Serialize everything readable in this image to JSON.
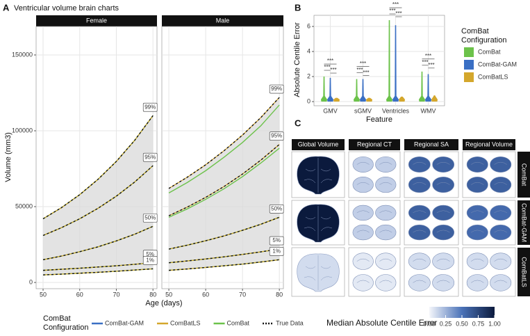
{
  "chart_data": [
    {
      "type": "line",
      "panel": "A",
      "title": "Ventricular volume brain charts",
      "xlabel": "Age (days)",
      "ylabel": "Volume (mm3)",
      "xlim": [
        48.1,
        81.1
      ],
      "ylim": [
        -4100,
        168800
      ],
      "xticks": [
        50,
        60,
        70,
        80
      ],
      "yticks": [
        0,
        50000,
        100000,
        150000
      ],
      "grid": true,
      "x": [
        50,
        55,
        60,
        65,
        70,
        75,
        80
      ],
      "legend_title": [
        "ComBat",
        "Configuration"
      ],
      "series": [
        {
          "name": "ComBat-GAM",
          "color": "#3a6fc4"
        },
        {
          "name": "ComBatLS",
          "color": "#d4a72c"
        },
        {
          "name": "ComBat",
          "color": "#6cc24a"
        },
        {
          "name": "True Data",
          "color": "#111111"
        }
      ],
      "facets": [
        {
          "name": "Female",
          "centiles": [
            {
              "label": "99%",
              "values": [
                42000,
                49300,
                57900,
                68000,
                79800,
                93700,
                110000
              ]
            },
            {
              "label": "95%",
              "values": [
                31000,
                36100,
                42000,
                48900,
                56900,
                66200,
                77000
              ]
            },
            {
              "label": "50%",
              "values": [
                15000,
                17400,
                20300,
                23500,
                27400,
                31800,
                37000
              ]
            },
            {
              "label": "5%",
              "values": [
                8000,
                8700,
                9400,
                10200,
                11000,
                12000,
                13000
              ]
            },
            {
              "label": "1%",
              "values": [
                5000,
                5500,
                6100,
                6700,
                7400,
                8200,
                9000
              ]
            }
          ]
        },
        {
          "name": "Male",
          "centiles": [
            {
              "label": "99%",
              "values": [
                62000,
                69400,
                77600,
                86900,
                97200,
                108800,
                122000
              ],
              "model_values": [
                59000,
                65900,
                73700,
                82600,
                92300,
                103400,
                117000
              ]
            },
            {
              "label": "95%",
              "values": [
                44000,
                49700,
                56100,
                63300,
                71500,
                80700,
                91000
              ],
              "model_values": [
                43000,
                48500,
                54800,
                61800,
                69800,
                78800,
                88500
              ]
            },
            {
              "label": "50%",
              "values": [
                22000,
                24600,
                27500,
                30700,
                34400,
                38400,
                43000
              ]
            },
            {
              "label": "5%",
              "values": [
                13000,
                14200,
                15500,
                16900,
                18500,
                20200,
                22000
              ]
            },
            {
              "label": "1%",
              "values": [
                8000,
                8900,
                9900,
                11000,
                12100,
                13500,
                15000
              ]
            }
          ]
        }
      ]
    },
    {
      "type": "violin",
      "panel": "B",
      "xlabel": "Feature",
      "ylabel": "Absolute Centile Error",
      "categories": [
        "GMV",
        "sGMV",
        "Ventricles",
        "WMV"
      ],
      "ylim": [
        -0.33,
        6.89
      ],
      "yticks": [
        0,
        2,
        4,
        6
      ],
      "grid": true,
      "legend_title": [
        "ComBat",
        "Configuration"
      ],
      "series": [
        {
          "name": "ComBat",
          "color": "#6cc24a",
          "values": [
            2.0,
            1.8,
            6.5,
            2.4
          ]
        },
        {
          "name": "ComBat-GAM",
          "color": "#3a6fc4",
          "values": [
            1.9,
            1.8,
            6.1,
            2.2
          ]
        },
        {
          "name": "ComBatLS",
          "color": "#d4a72c",
          "values": [
            0.3,
            0.3,
            0.4,
            0.5
          ]
        }
      ],
      "significance": [
        [
          "***",
          "***",
          "***"
        ],
        [
          "***",
          "***",
          "***"
        ],
        [
          "***",
          "***",
          "***"
        ],
        [
          "***",
          "***",
          "***"
        ]
      ]
    },
    {
      "type": "heatmap",
      "panel": "C",
      "columns": [
        "Global Volume",
        "Regional CT",
        "Regional SA",
        "Regional Volume"
      ],
      "rows": [
        "ComBat",
        "ComBat-GAM",
        "ComBatLS"
      ],
      "values": [
        [
          1.0,
          0.15,
          0.6,
          0.6
        ],
        [
          1.0,
          0.15,
          0.6,
          0.55
        ],
        [
          0.1,
          0.05,
          0.1,
          0.1
        ]
      ],
      "colorbar_title": "Median Absolute Centile Error",
      "clim": [
        0,
        1
      ],
      "colors": [
        "#f4f6fb",
        "#4a72b8",
        "#0b1a3d"
      ],
      "cticks": [
        {
          "value": 0,
          "label": "0.00"
        },
        {
          "value": 0.25,
          "label": "0.25"
        },
        {
          "value": 0.5,
          "label": "0.50"
        },
        {
          "value": 0.75,
          "label": "0.75"
        },
        {
          "value": 1,
          "label": "1.00"
        }
      ]
    }
  ]
}
